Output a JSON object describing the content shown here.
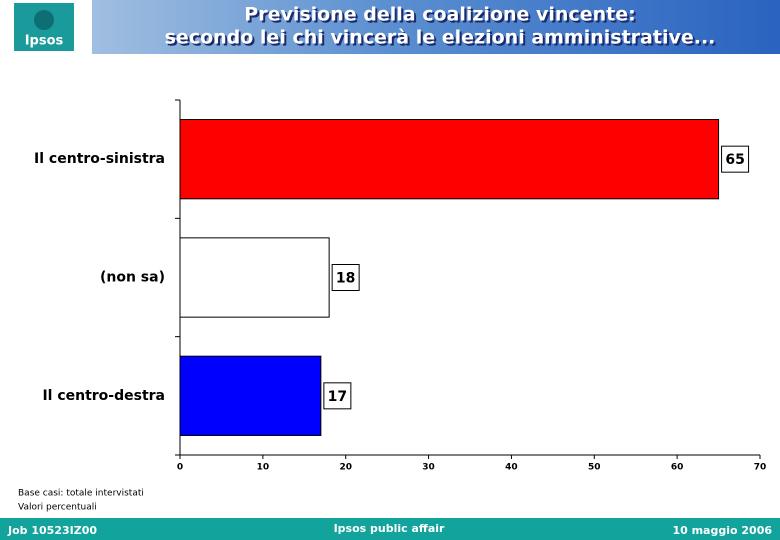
{
  "header": {
    "logo": "Ipsos",
    "title_lines": [
      "Previsione della coalizione vincente:",
      "secondo lei chi vincerà le elezioni amministrative..."
    ]
  },
  "chart_data": {
    "type": "hbar",
    "categories": [
      "Il centro-sinistra",
      "(non sa)",
      "Il centro-destra"
    ],
    "values": [
      65,
      18,
      17
    ],
    "colors": [
      "#ff0000",
      "#ffffff",
      "#0000ff"
    ],
    "xlim": [
      0,
      70
    ],
    "xticks": [
      0,
      10,
      20,
      30,
      40,
      50,
      60,
      70
    ],
    "notes": [
      "Base casi: totale intervistati",
      "Valori percentuali"
    ]
  },
  "footer": {
    "left": "Job 10523IZ00",
    "center": "Ipsos public affair",
    "right": "10 maggio 2006"
  }
}
